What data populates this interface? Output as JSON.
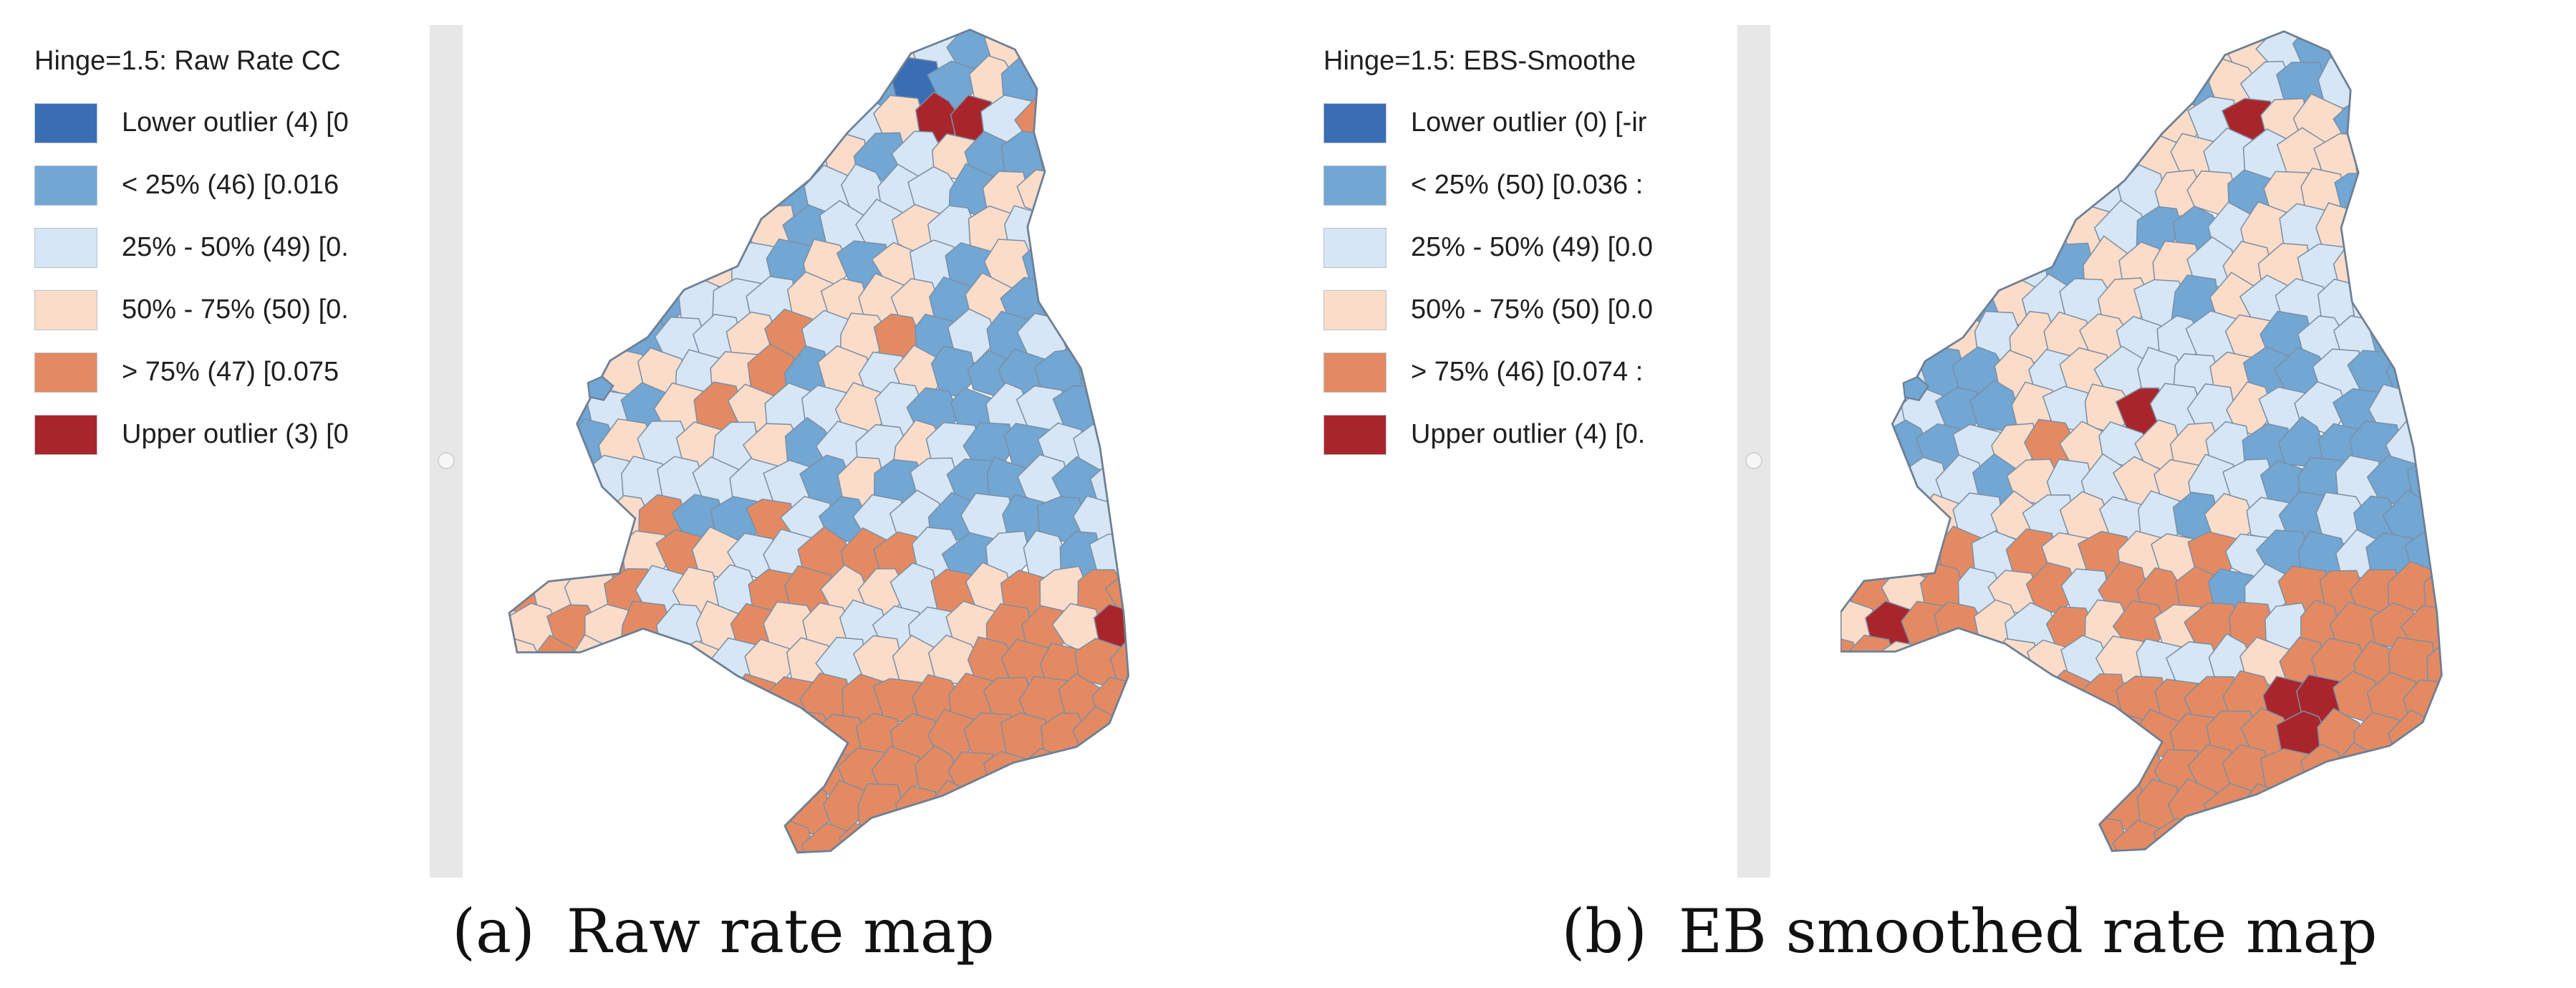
{
  "colors": {
    "lower_outlier": "#3a6eb4",
    "q1": "#72a6d3",
    "q2": "#d6e6f4",
    "q3": "#fbdcc8",
    "q4": "#e48a62",
    "upper_outlier": "#a8262b",
    "boundary": "#7b8fa6",
    "scroll_rail": "#e7e7e7"
  },
  "panels": [
    {
      "legend_title": "Hinge=1.5: Raw Rate CC",
      "legend_items": [
        {
          "label": "Lower outlier (4)  [0",
          "class": "lower_outlier"
        },
        {
          "label": "< 25% (46)  [0.016",
          "class": "q1"
        },
        {
          "label": "25% - 50% (49)  [0.",
          "class": "q2"
        },
        {
          "label": "50% - 75% (50)  [0.",
          "class": "q3"
        },
        {
          "label": "> 75% (47)  [0.075",
          "class": "q4"
        },
        {
          "label": "Upper outlier (3)  [0",
          "class": "upper_outlier"
        }
      ],
      "caption_tag": "(a)",
      "caption_text": "Raw rate map"
    },
    {
      "legend_title": "Hinge=1.5: EBS-Smoothe",
      "legend_items": [
        {
          "label": "Lower outlier (0)  [-ir",
          "class": "lower_outlier"
        },
        {
          "label": "< 25% (50)  [0.036 :",
          "class": "q1"
        },
        {
          "label": "25% - 50% (49)  [0.0",
          "class": "q2"
        },
        {
          "label": "50% - 75% (50)  [0.0",
          "class": "q3"
        },
        {
          "label": "> 75% (46)  [0.074 :",
          "class": "q4"
        },
        {
          "label": "Upper outlier (4)  [0.",
          "class": "upper_outlier"
        }
      ],
      "caption_tag": "(b)",
      "caption_text": "EB smoothed rate map"
    }
  ]
}
